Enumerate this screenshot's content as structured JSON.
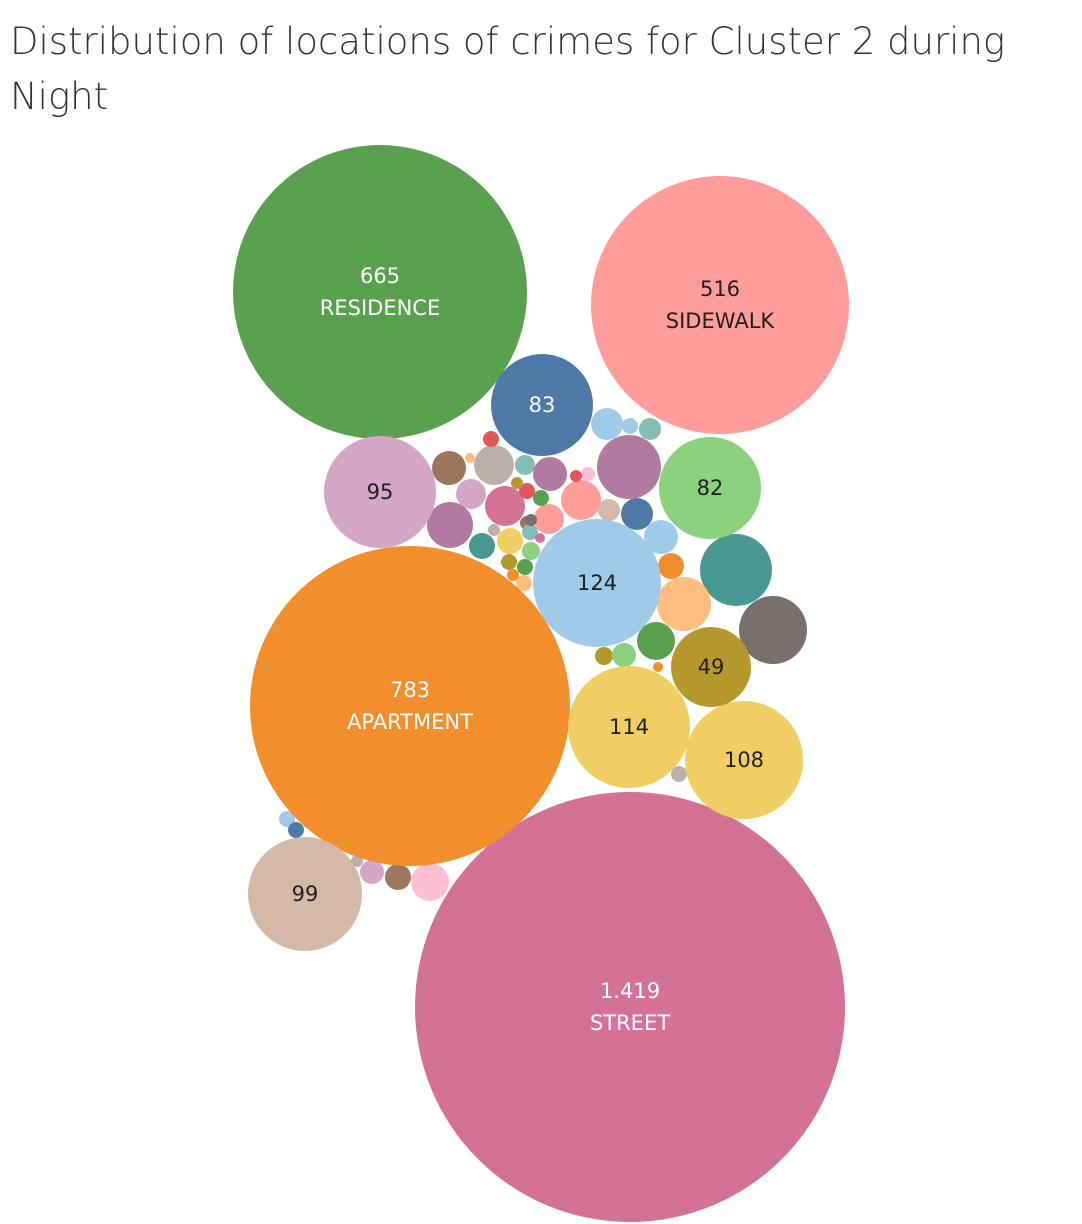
{
  "title": "Distribution of locations of crimes for Cluster 2 during Night",
  "chart_data": {
    "type": "bubble",
    "title": "Distribution of locations of crimes for Cluster 2 during Night",
    "labeled_bubbles": [
      {
        "value_label": "1.419",
        "value": 1419,
        "category": "STREET",
        "color": "#d37295"
      },
      {
        "value_label": "783",
        "value": 783,
        "category": "APARTMENT",
        "color": "#f28e2b"
      },
      {
        "value_label": "665",
        "value": 665,
        "category": "RESIDENCE",
        "color": "#59a14f"
      },
      {
        "value_label": "516",
        "value": 516,
        "category": "SIDEWALK",
        "color": "#ff9d9a"
      },
      {
        "value_label": "124",
        "value": 124,
        "category": "",
        "color": "#a0cbe8"
      },
      {
        "value_label": "114",
        "value": 114,
        "category": "",
        "color": "#f1ce63"
      },
      {
        "value_label": "108",
        "value": 108,
        "category": "",
        "color": "#f1ce63"
      },
      {
        "value_label": "99",
        "value": 99,
        "category": "",
        "color": "#d4b9a8"
      },
      {
        "value_label": "95",
        "value": 95,
        "category": "",
        "color": "#d4a6c8"
      },
      {
        "value_label": "83",
        "value": 83,
        "category": "",
        "color": "#4e79a7"
      },
      {
        "value_label": "82",
        "value": 82,
        "category": "",
        "color": "#8cd17d"
      },
      {
        "value_label": "49",
        "value": 49,
        "category": "",
        "color": "#b6992d"
      }
    ],
    "unlabeled_bubble_colors": [
      "#499894",
      "#79706e",
      "#ffbe7d",
      "#f28e2b",
      "#a0cbe8",
      "#4e79a7",
      "#59a14f",
      "#b6992d",
      "#8cd17d",
      "#f28e2b",
      "#bab0ac",
      "#a0cbe8",
      "#4e79a7",
      "#d4a6c8",
      "#b07aa1",
      "#fabfd2",
      "#9d7660",
      "#9c755f",
      "#ff9d9a",
      "#bab0ac",
      "#86bcb6",
      "#b07aa1",
      "#a0cbe8",
      "#86bcb6",
      "#e15759",
      "#ffbe7d",
      "#d4a6c8",
      "#d37295",
      "#499894",
      "#9c755f",
      "#e15759",
      "#fabfd2",
      "#d4b9a8",
      "#ff9d9a",
      "#b07aa1",
      "#4e79a7",
      "#a0cbe8",
      "#f28e2b",
      "#ffbe7d",
      "#59a14f",
      "#8cd17d",
      "#b6992d",
      "#f28e2b",
      "#bab0ac",
      "#f1ce63",
      "#8cd17d",
      "#59a14f",
      "#86bcb6",
      "#e15759",
      "#79706e",
      "#d37295",
      "#b6992d",
      "#4e79a7",
      "#ffbe7d",
      "#bab0ac",
      "#d4a6c8"
    ]
  }
}
